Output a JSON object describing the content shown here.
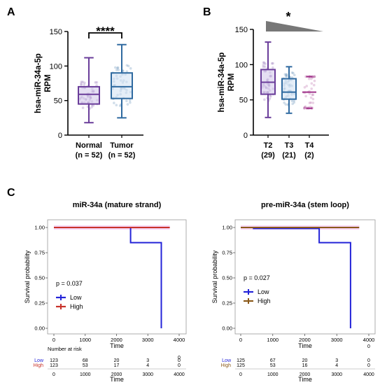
{
  "panels": {
    "a": "A",
    "b": "B",
    "c": "C"
  },
  "colors": {
    "purple": "#6a3d9a",
    "purple_fill": "#cfc4ea",
    "blue": "#2f6aa0",
    "blue_fill": "#cfe0f3",
    "magenta": "#a0338a",
    "km_low": "#2424d8",
    "km_high": "#c8322a",
    "km_high_b": "#8b5a1a",
    "km_band": "#f3c8ef",
    "gray": "#777777"
  },
  "chart_data": [
    {
      "type": "box",
      "panel": "A",
      "ylabel": [
        "hsa-miR-34a-5p",
        "RPM"
      ],
      "ylim": [
        0,
        150
      ],
      "yticks": [
        0,
        50,
        100,
        150
      ],
      "categories": [
        [
          "Normal",
          "(n = 52)"
        ],
        [
          "Tumor",
          "(n = 52)"
        ]
      ],
      "annotation": "****",
      "boxes": [
        {
          "min": 18,
          "q1": 45,
          "median": 59,
          "q3": 70,
          "max": 112,
          "color": "purple"
        },
        {
          "min": 25,
          "q1": 53,
          "median": 70,
          "q3": 90,
          "max": 131,
          "color": "blue"
        }
      ]
    },
    {
      "type": "box",
      "panel": "B",
      "ylabel": [
        "hsa-miR-34a-5p",
        "RPM"
      ],
      "ylim": [
        0,
        150
      ],
      "yticks": [
        0,
        50,
        100,
        150
      ],
      "categories": [
        [
          "T2",
          "(29)"
        ],
        [
          "T3",
          "(21)"
        ],
        [
          "T4",
          "(2)"
        ]
      ],
      "annotation": "*",
      "boxes": [
        {
          "min": 25,
          "q1": 58,
          "median": 75,
          "q3": 93,
          "max": 132,
          "color": "purple"
        },
        {
          "min": 31,
          "q1": 51,
          "median": 61,
          "q3": 80,
          "max": 97,
          "color": "blue"
        },
        {
          "min": 38,
          "q1": 38,
          "median": 61,
          "q3": 83,
          "max": 83,
          "color": "magenta"
        }
      ]
    },
    {
      "type": "line",
      "panel": "C",
      "title": "miR-34a (mature strand)",
      "xlabel": "Time",
      "ylabel": "Survival probability",
      "xlim": [
        0,
        4000
      ],
      "ylim": [
        0,
        1
      ],
      "xticks": [
        0,
        1000,
        2000,
        3000,
        4000
      ],
      "yticks": [
        "0.00",
        "0.25",
        "0.50",
        "0.75",
        "1.00"
      ],
      "p_value": "p = 0.037",
      "series": [
        {
          "name": "Low",
          "color": "km_low",
          "x": [
            0,
            2450,
            2450,
            3430,
            3430
          ],
          "y": [
            1.0,
            1.0,
            0.85,
            0.85,
            0.0
          ]
        },
        {
          "name": "High",
          "color": "km_high",
          "x": [
            0,
            3700
          ],
          "y": [
            1.0,
            1.0
          ]
        }
      ],
      "risk_table": {
        "title": "Number at risk",
        "top_value": "0",
        "rows": [
          {
            "name": "Low",
            "color": "km_low",
            "values": [
              "123",
              "68",
              "20",
              "3",
              "0"
            ]
          },
          {
            "name": "High",
            "color": "km_high",
            "values": [
              "123",
              "53",
              "17",
              "4",
              "0"
            ]
          }
        ]
      }
    },
    {
      "type": "line",
      "panel": "C",
      "title": "pre-miR-34a (stem loop)",
      "xlabel": "Time",
      "ylabel": "Survival probability",
      "xlim": [
        0,
        4000
      ],
      "ylim": [
        0,
        1
      ],
      "xticks": [
        0,
        1000,
        2000,
        3000,
        4000
      ],
      "yticks": [
        "0.00",
        "0.25",
        "0.50",
        "0.75",
        "1.00"
      ],
      "p_value": "p = 0.027",
      "series": [
        {
          "name": "Low",
          "color": "km_low",
          "x": [
            0,
            400,
            400,
            2450,
            2450,
            3430,
            3430
          ],
          "y": [
            1.0,
            1.0,
            0.99,
            0.99,
            0.85,
            0.85,
            0.0
          ]
        },
        {
          "name": "High",
          "color": "km_high_b",
          "x": [
            0,
            3700
          ],
          "y": [
            1.0,
            1.0
          ]
        }
      ],
      "risk_table": {
        "title": "",
        "top_value": "0",
        "rows": [
          {
            "name": "Low",
            "color": "km_low",
            "values": [
              "125",
              "67",
              "20",
              "3",
              "0"
            ]
          },
          {
            "name": "High",
            "color": "km_high_b",
            "values": [
              "125",
              "53",
              "16",
              "4",
              "0"
            ]
          }
        ]
      }
    }
  ]
}
